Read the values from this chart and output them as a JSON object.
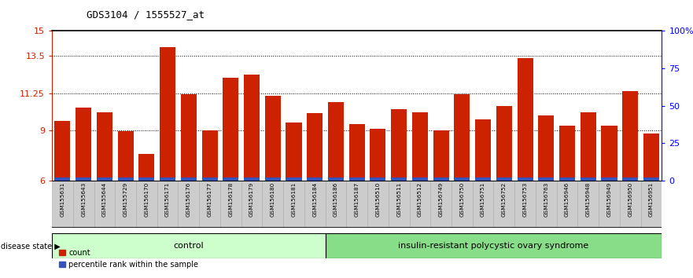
{
  "title": "GDS3104 / 1555527_at",
  "samples": [
    "GSM155631",
    "GSM155643",
    "GSM155644",
    "GSM155729",
    "GSM156170",
    "GSM156171",
    "GSM156176",
    "GSM156177",
    "GSM156178",
    "GSM156179",
    "GSM156180",
    "GSM156181",
    "GSM156184",
    "GSM156186",
    "GSM156187",
    "GSM156510",
    "GSM156511",
    "GSM156512",
    "GSM156749",
    "GSM156750",
    "GSM156751",
    "GSM156752",
    "GSM156753",
    "GSM156763",
    "GSM156946",
    "GSM156948",
    "GSM156949",
    "GSM156950",
    "GSM156951"
  ],
  "counts": [
    9.6,
    10.4,
    10.1,
    8.95,
    7.6,
    14.0,
    11.2,
    9.0,
    12.15,
    12.35,
    11.1,
    9.5,
    10.05,
    10.7,
    9.4,
    9.1,
    10.3,
    10.1,
    9.0,
    11.2,
    9.7,
    10.5,
    13.35,
    9.9,
    9.3,
    10.1,
    9.3,
    11.35,
    8.85
  ],
  "blue_heights": [
    0.18,
    0.18,
    0.18,
    0.18,
    0.18,
    0.18,
    0.18,
    0.18,
    0.18,
    0.18,
    0.18,
    0.18,
    0.18,
    0.18,
    0.18,
    0.18,
    0.18,
    0.18,
    0.18,
    0.18,
    0.18,
    0.18,
    0.18,
    0.18,
    0.18,
    0.18,
    0.18,
    0.18,
    0.18
  ],
  "control_count": 13,
  "disease_count": 16,
  "control_label": "control",
  "disease_label": "insulin-resistant polycystic ovary syndrome",
  "y_min": 6,
  "y_max": 15,
  "y_ticks": [
    6,
    9,
    11.25,
    13.5,
    15
  ],
  "y_tick_labels": [
    "6",
    "9",
    "11.25",
    "13.5",
    "15"
  ],
  "right_y_ticks": [
    0,
    25,
    50,
    75,
    100
  ],
  "right_y_tick_labels": [
    "0",
    "25",
    "50",
    "75",
    "100%"
  ],
  "bar_color": "#cc2200",
  "blue_color": "#3355bb",
  "control_bg": "#ccffcc",
  "disease_bg": "#88dd88",
  "label_bg": "#cccccc",
  "legend_count_label": "count",
  "legend_pct_label": "percentile rank within the sample",
  "disease_state_label": "disease state"
}
